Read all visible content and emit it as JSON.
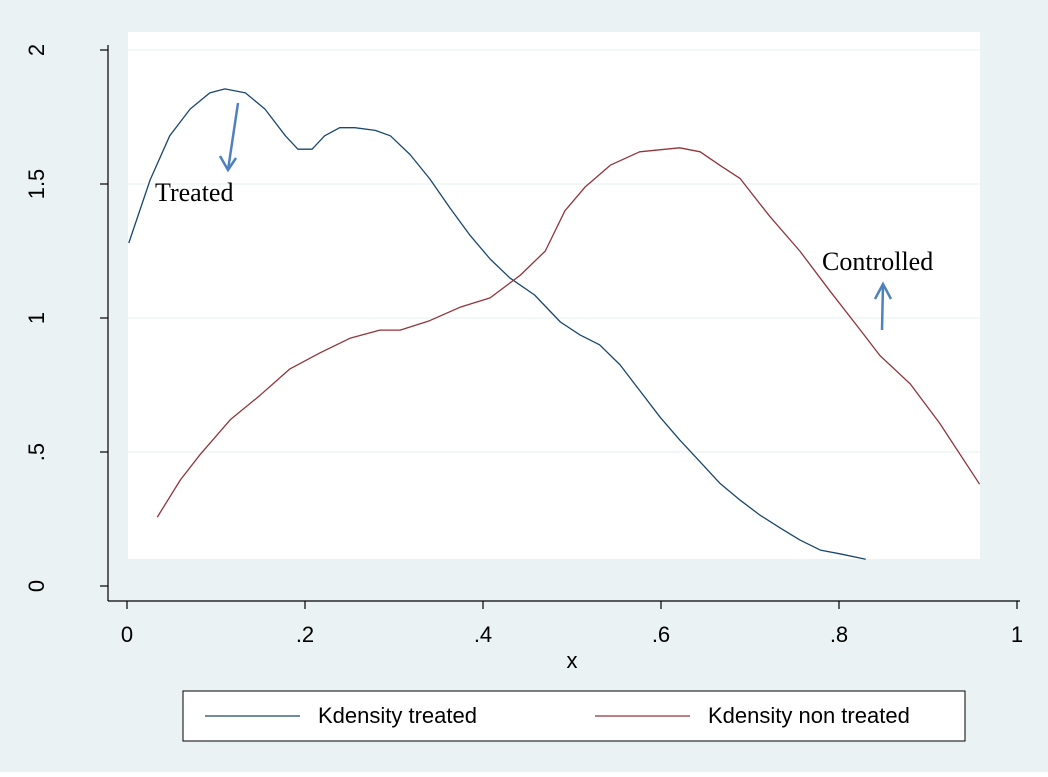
{
  "chart_data": {
    "type": "line",
    "xlabel": "x",
    "xlim": [
      0,
      1
    ],
    "ylim": [
      0,
      2
    ],
    "xticks": [
      0,
      {
        "value": 0.2,
        "label": ".2"
      },
      {
        "value": 0.4,
        "label": ".4"
      },
      {
        "value": 0.6,
        "label": ".6"
      },
      {
        "value": 0.8,
        "label": ".8"
      },
      1
    ],
    "yticks": [
      0,
      {
        "value": 0.5,
        "label": ".5"
      },
      1,
      1.5,
      2
    ],
    "grid": true,
    "legend": "bottom",
    "annotations": [
      {
        "text": "Treated"
      },
      {
        "text": "Controlled"
      }
    ],
    "series": [
      {
        "name": "Kdensity treated",
        "color": "#1a476f",
        "x": [
          0.002,
          0.026,
          0.048,
          0.071,
          0.093,
          0.11,
          0.133,
          0.155,
          0.178,
          0.192,
          0.208,
          0.222,
          0.239,
          0.256,
          0.279,
          0.296,
          0.318,
          0.34,
          0.363,
          0.385,
          0.408,
          0.43,
          0.458,
          0.487,
          0.509,
          0.531,
          0.554,
          0.576,
          0.599,
          0.621,
          0.644,
          0.666,
          0.689,
          0.711,
          0.734,
          0.756,
          0.779,
          0.801,
          0.83
        ],
        "values": [
          1.28,
          1.515,
          1.68,
          1.78,
          1.84,
          1.855,
          1.84,
          1.78,
          1.68,
          1.63,
          1.63,
          1.68,
          1.71,
          1.71,
          1.7,
          1.68,
          1.61,
          1.52,
          1.41,
          1.31,
          1.22,
          1.15,
          1.086,
          0.985,
          0.937,
          0.9,
          0.825,
          0.73,
          0.63,
          0.545,
          0.463,
          0.384,
          0.32,
          0.265,
          0.216,
          0.172,
          0.134,
          0.12,
          0.1
        ]
      },
      {
        "name": "Kdensity non treated",
        "color": "#90353b",
        "x": [
          0.034,
          0.06,
          0.082,
          0.116,
          0.149,
          0.183,
          0.217,
          0.251,
          0.284,
          0.307,
          0.34,
          0.374,
          0.408,
          0.442,
          0.47,
          0.492,
          0.515,
          0.543,
          0.576,
          0.621,
          0.644,
          0.666,
          0.689,
          0.722,
          0.756,
          0.79,
          0.824,
          0.846,
          0.88,
          0.913,
          0.958
        ],
        "values": [
          0.257,
          0.396,
          0.49,
          0.62,
          0.71,
          0.81,
          0.87,
          0.925,
          0.955,
          0.955,
          0.99,
          1.04,
          1.075,
          1.16,
          1.25,
          1.4,
          1.49,
          1.57,
          1.62,
          1.635,
          1.62,
          1.57,
          1.52,
          1.38,
          1.25,
          1.1,
          0.955,
          0.86,
          0.754,
          0.608,
          0.38
        ]
      }
    ]
  }
}
